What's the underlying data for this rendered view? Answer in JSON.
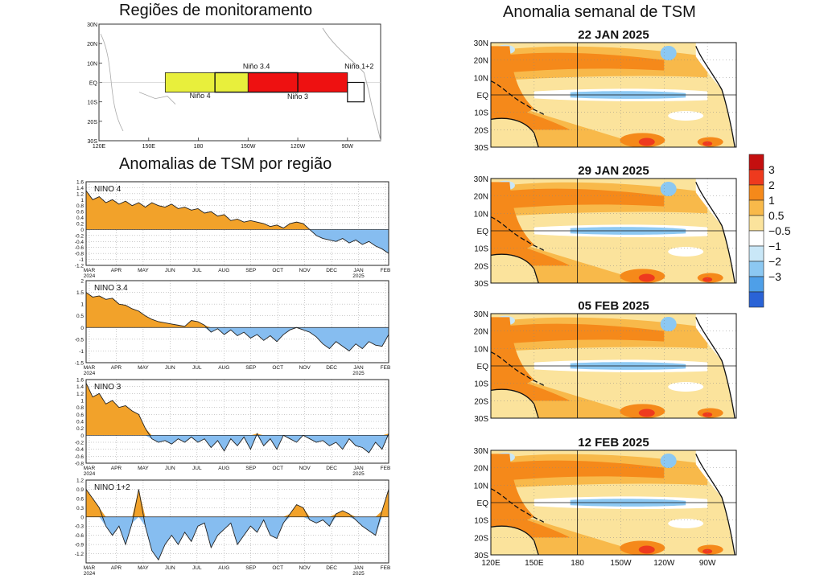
{
  "titles": {
    "regions": "Regiões de monitoramento",
    "anomalies": "Anomalias de TSM por região",
    "weekly": "Anomalia semanal de TSM"
  },
  "region_map": {
    "lat_labels": [
      "30N",
      "20N",
      "10N",
      "EQ",
      "10S",
      "20S",
      "30S"
    ],
    "lon_labels": [
      "120E",
      "150E",
      "180",
      "150W",
      "120W",
      "90W"
    ],
    "regions": [
      {
        "label": "Niño 4",
        "color": "#e8ef3c"
      },
      {
        "label": "Niño 3.4",
        "color": "#ee1111"
      },
      {
        "label": "Niño 3",
        "color": "#ee1111"
      },
      {
        "label": "Niño 1+2",
        "color": "#ffffff"
      }
    ]
  },
  "timeseries_axis": {
    "months": [
      "MAR",
      "APR",
      "MAY",
      "JUN",
      "JUL",
      "AUG",
      "SEP",
      "OCT",
      "NOV",
      "DEC",
      "JAN",
      "FEB"
    ],
    "years": [
      "2024",
      "2025"
    ]
  },
  "chart_data": [
    {
      "type": "area",
      "title": "NINO  4",
      "ylim": [
        -1.2,
        1.6
      ],
      "yticks": [
        "1.6",
        "1.4",
        "1.2",
        "1",
        "0.8",
        "0.6",
        "0.4",
        "0.2",
        "0",
        "-0.2",
        "-0.4",
        "-0.6",
        "-0.8",
        "-1",
        "-1.2"
      ],
      "values": [
        1.3,
        1.0,
        1.1,
        0.9,
        1.0,
        0.85,
        0.95,
        0.8,
        0.9,
        0.75,
        0.9,
        0.8,
        0.75,
        0.85,
        0.7,
        0.75,
        0.65,
        0.7,
        0.55,
        0.6,
        0.45,
        0.5,
        0.3,
        0.35,
        0.25,
        0.3,
        0.25,
        0.2,
        0.1,
        0.15,
        0.05,
        0.2,
        0.25,
        0.2,
        0.0,
        -0.2,
        -0.3,
        -0.35,
        -0.4,
        -0.3,
        -0.45,
        -0.35,
        -0.5,
        -0.4,
        -0.55,
        -0.65,
        -0.8
      ]
    },
    {
      "type": "area",
      "title": "NINO  3.4",
      "ylim": [
        -1.5,
        2
      ],
      "yticks": [
        "2",
        "1.5",
        "1",
        "0.5",
        "0",
        "-0.5",
        "-1",
        "-1.5"
      ],
      "values": [
        1.5,
        1.3,
        1.35,
        1.2,
        1.25,
        1.0,
        0.95,
        0.8,
        0.7,
        0.5,
        0.35,
        0.25,
        0.2,
        0.15,
        0.1,
        0.05,
        0.3,
        0.25,
        0.1,
        -0.2,
        -0.05,
        -0.3,
        -0.1,
        -0.35,
        -0.2,
        -0.45,
        -0.3,
        -0.55,
        -0.35,
        -0.6,
        -0.3,
        -0.1,
        0.0,
        -0.1,
        -0.2,
        -0.4,
        -0.7,
        -0.9,
        -0.6,
        -0.8,
        -1.0,
        -0.7,
        -0.9,
        -0.6,
        -0.75,
        -0.8,
        -0.3
      ]
    },
    {
      "type": "area",
      "title": "NINO  3",
      "ylim": [
        -0.8,
        1.6
      ],
      "yticks": [
        "1.6",
        "1.4",
        "1.2",
        "1",
        "0.8",
        "0.6",
        "0.4",
        "0.2",
        "0",
        "-0.2",
        "-0.4",
        "-0.6",
        "-0.8"
      ],
      "values": [
        1.5,
        1.1,
        1.2,
        0.9,
        1.0,
        0.8,
        0.85,
        0.7,
        0.6,
        0.2,
        -0.1,
        -0.2,
        -0.15,
        -0.25,
        -0.1,
        -0.2,
        -0.05,
        -0.2,
        -0.1,
        -0.35,
        -0.15,
        -0.45,
        -0.1,
        -0.3,
        -0.05,
        -0.4,
        0.05,
        -0.3,
        -0.1,
        -0.4,
        0.0,
        -0.1,
        -0.2,
        0.0,
        -0.1,
        -0.2,
        -0.15,
        -0.3,
        -0.2,
        -0.4,
        -0.1,
        -0.3,
        -0.35,
        -0.5,
        -0.2,
        -0.4,
        0.05
      ]
    },
    {
      "type": "area",
      "title": "NINO  1+2",
      "ylim": [
        -1.5,
        1.2
      ],
      "yticks": [
        "1.2",
        "0.9",
        "0.6",
        "0.3",
        "0",
        "-0.3",
        "-0.6",
        "-0.9",
        "-1.2"
      ],
      "values": [
        0.9,
        0.6,
        0.3,
        -0.3,
        -0.6,
        -0.3,
        -0.9,
        -0.2,
        0.9,
        -0.3,
        -1.1,
        -1.4,
        -0.9,
        -0.6,
        -0.9,
        -0.5,
        -0.8,
        -0.3,
        -0.2,
        -1.0,
        -0.6,
        -0.4,
        -0.2,
        -0.9,
        -0.6,
        -0.3,
        -0.5,
        -0.1,
        -0.6,
        -0.7,
        -0.2,
        0.1,
        0.4,
        0.3,
        -0.1,
        -0.2,
        -0.1,
        -0.3,
        0.1,
        0.2,
        0.1,
        -0.1,
        -0.3,
        -0.45,
        -0.6,
        0.2,
        0.9
      ]
    }
  ],
  "weekly_maps": {
    "dates": [
      "22  JAN  2025",
      "29  JAN  2025",
      "05  FEB  2025",
      "12  FEB  2025"
    ],
    "lat_labels": [
      "30N",
      "20N",
      "10N",
      "EQ",
      "10S",
      "20S",
      "30S"
    ],
    "lon_labels": [
      "120E",
      "150E",
      "180",
      "150W",
      "120W",
      "90W"
    ]
  },
  "colorbar": {
    "labels": [
      "3",
      "2",
      "1",
      "0.5",
      "−0.5",
      "−1",
      "−2",
      "−3"
    ],
    "colors": [
      "#c40f0f",
      "#ee3a1e",
      "#f5891a",
      "#f8b94a",
      "#fbe39c",
      "#ffffff",
      "#c9e7f7",
      "#8cc8f2",
      "#4e9fe8",
      "#2a63d6"
    ]
  }
}
